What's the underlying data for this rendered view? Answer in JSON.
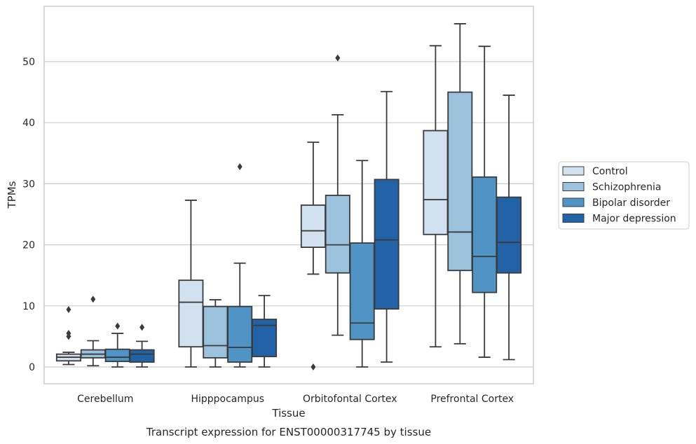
{
  "chart_data": {
    "type": "box",
    "caption": "Transcript expression for ENST00000317745 by tissue",
    "xlabel": "Tissue",
    "ylabel": "TPMs",
    "ylim": [
      -2.8,
      59.0
    ],
    "yticks": [
      0,
      10,
      20,
      30,
      40,
      50
    ],
    "grid": true,
    "legend_position": "right",
    "categories": [
      "Cerebellum",
      "Hipppocampus",
      "Orbitofontal Cortex",
      "Prefrontal Cortex"
    ],
    "series": [
      {
        "name": "Control",
        "color": "#d1e1f0",
        "boxes": [
          {
            "whislo": 0.4,
            "q1": 1.0,
            "med": 1.6,
            "q3": 2.1,
            "whishi": 2.4,
            "fliers": [
              5.0,
              5.5,
              9.4
            ]
          },
          {
            "whislo": 0.0,
            "q1": 3.3,
            "med": 10.6,
            "q3": 14.2,
            "whishi": 27.3,
            "fliers": []
          },
          {
            "whislo": 15.2,
            "q1": 19.6,
            "med": 22.3,
            "q3": 26.5,
            "whishi": 36.8,
            "fliers": [
              0.0
            ]
          },
          {
            "whislo": 3.3,
            "q1": 21.7,
            "med": 27.4,
            "q3": 38.7,
            "whishi": 52.6,
            "fliers": []
          }
        ]
      },
      {
        "name": "Schizophrenia",
        "color": "#9ac2dc",
        "boxes": [
          {
            "whislo": 0.2,
            "q1": 1.5,
            "med": 2.1,
            "q3": 2.8,
            "whishi": 4.3,
            "fliers": [
              11.1
            ]
          },
          {
            "whislo": 0.0,
            "q1": 1.5,
            "med": 3.5,
            "q3": 9.9,
            "whishi": 11.0,
            "fliers": []
          },
          {
            "whislo": 5.2,
            "q1": 15.4,
            "med": 20.0,
            "q3": 28.1,
            "whishi": 41.3,
            "fliers": [
              50.6
            ]
          },
          {
            "whislo": 3.8,
            "q1": 15.8,
            "med": 22.1,
            "q3": 45.0,
            "whishi": 56.2,
            "fliers": []
          }
        ]
      },
      {
        "name": "Bipolar disorder",
        "color": "#4f94c4",
        "boxes": [
          {
            "whislo": 0.0,
            "q1": 0.9,
            "med": 1.6,
            "q3": 2.9,
            "whishi": 5.5,
            "fliers": [
              6.7
            ]
          },
          {
            "whislo": 0.0,
            "q1": 0.8,
            "med": 3.2,
            "q3": 9.9,
            "whishi": 17.0,
            "fliers": [
              32.8
            ]
          },
          {
            "whislo": 0.0,
            "q1": 4.5,
            "med": 7.2,
            "q3": 20.3,
            "whishi": 33.8,
            "fliers": []
          },
          {
            "whislo": 1.6,
            "q1": 12.2,
            "med": 18.1,
            "q3": 31.1,
            "whishi": 52.5,
            "fliers": []
          }
        ]
      },
      {
        "name": "Major depression",
        "color": "#2163a6",
        "boxes": [
          {
            "whislo": 0.0,
            "q1": 0.8,
            "med": 2.1,
            "q3": 2.8,
            "whishi": 4.2,
            "fliers": [
              6.5
            ]
          },
          {
            "whislo": 0.0,
            "q1": 1.7,
            "med": 6.8,
            "q3": 7.8,
            "whishi": 11.7,
            "fliers": []
          },
          {
            "whislo": 0.8,
            "q1": 9.5,
            "med": 20.8,
            "q3": 30.7,
            "whishi": 45.1,
            "fliers": []
          },
          {
            "whislo": 1.2,
            "q1": 15.4,
            "med": 20.4,
            "q3": 27.8,
            "whishi": 44.5,
            "fliers": []
          }
        ]
      }
    ]
  }
}
